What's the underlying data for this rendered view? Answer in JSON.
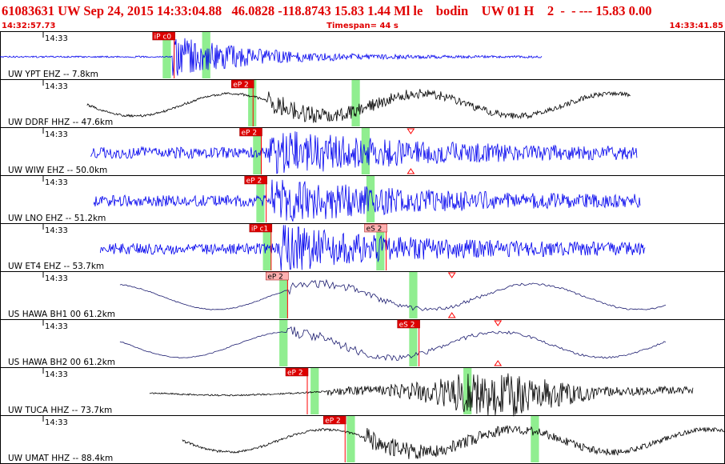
{
  "header": {
    "title": "61083631 UW Sep 24, 2015 14:33:04.88   46.0828 -118.8743 15.83 1.44 Ml le    bodin    UW 01 H    2  -  - --- 15.83 0.00",
    "start_time": "14:32:57.73",
    "timespan": "Timespan=  44 s",
    "end_time": "14:33:41.85"
  },
  "colors": {
    "header_text": "#e00000",
    "pick_label_bg": "#dd0000",
    "pick_label_bg_light": "#ffb0b0",
    "pick_line": "#ff0000",
    "green_window": "#90ee90",
    "trace_blue": "#0000ee",
    "trace_black": "#000000",
    "trace_navy": "#1a1a6e"
  },
  "chart_data": {
    "type": "line",
    "title": "61083631 UW Sep 24, 2015 14:33:04.88",
    "x_start": "14:32:57.73",
    "x_end": "14:33:41.85",
    "timespan_s": 44,
    "xlim": [
      0,
      44.12
    ],
    "grid": false,
    "traces": [
      {
        "label": "UW YPT EHZ -- 7.8km",
        "tick_label": "14:33",
        "color": "#0000ee",
        "style": "impulsive",
        "trace_start_s": 0.0,
        "trace_end_s": 33.0,
        "onset_s": 10.5,
        "coda_end_s": 19.0,
        "picks": [
          {
            "label": "iP c0",
            "time_s": 10.6,
            "style": "dark"
          }
        ],
        "windows_s": [
          [
            9.9,
            10.4
          ],
          [
            12.3,
            12.8
          ]
        ]
      },
      {
        "label": "UW DDRF HHZ -- 47.6km",
        "tick_label": "14:33",
        "color": "#000000",
        "style": "longperiod",
        "trace_start_s": 5.3,
        "trace_end_s": 38.4,
        "onset_s": 16.3,
        "coda_end_s": 32.0,
        "picks": [
          {
            "label": "eP 2",
            "time_s": 15.4,
            "style": "dark"
          }
        ],
        "windows_s": [
          [
            15.1,
            15.6
          ],
          [
            21.4,
            21.9
          ]
        ]
      },
      {
        "label": "UW WIW EHZ -- 50.0km",
        "tick_label": "14:33",
        "color": "#0000ee",
        "style": "noisy",
        "trace_start_s": 5.5,
        "trace_end_s": 38.8,
        "onset_s": 16.4,
        "coda_end_s": 30.5,
        "picks": [
          {
            "label": "eP 2",
            "time_s": 15.9,
            "style": "dark"
          }
        ],
        "windows_s": [
          [
            15.4,
            15.9
          ],
          [
            22.0,
            22.5
          ]
        ],
        "amplitude_marker_s": 25.0
      },
      {
        "label": "UW LNO EHZ -- 51.2km",
        "tick_label": "14:33",
        "color": "#0000ee",
        "style": "noisy",
        "trace_start_s": 5.7,
        "trace_end_s": 39.0,
        "onset_s": 16.5,
        "coda_end_s": 30.0,
        "picks": [
          {
            "label": "eP 2",
            "time_s": 16.2,
            "style": "dark"
          }
        ],
        "windows_s": [
          [
            15.6,
            16.1
          ],
          [
            22.3,
            22.8
          ]
        ]
      },
      {
        "label": "UW ET4 EHZ -- 53.7km",
        "tick_label": "14:33",
        "color": "#0000ee",
        "style": "noisy",
        "trace_start_s": 6.1,
        "trace_end_s": 39.3,
        "onset_s": 17.0,
        "coda_end_s": 29.0,
        "picks": [
          {
            "label": "iP c1",
            "time_s": 16.5,
            "style": "dark"
          },
          {
            "label": "eS 2",
            "time_s": 23.5,
            "style": "light"
          }
        ],
        "windows_s": [
          [
            16.0,
            16.5
          ],
          [
            22.9,
            23.4
          ]
        ]
      },
      {
        "label": "US HAWA BH1 00 61.2km",
        "tick_label": "14:33",
        "color": "#1a1a6e",
        "style": "smooth",
        "trace_start_s": 7.3,
        "trace_end_s": 40.6,
        "onset_s": 17.5,
        "coda_end_s": 30.5,
        "picks": [
          {
            "label": "eP 2",
            "time_s": 17.5,
            "style": "light"
          }
        ],
        "windows_s": [
          [
            17.0,
            17.5
          ],
          [
            24.9,
            25.4
          ]
        ],
        "amplitude_marker_s": 27.5
      },
      {
        "label": "US HAWA BH2 00 61.2km",
        "tick_label": "14:33",
        "color": "#1a1a6e",
        "style": "smooth",
        "trace_start_s": 7.3,
        "trace_end_s": 40.6,
        "onset_s": 17.5,
        "coda_end_s": 31.5,
        "picks": [
          {
            "label": "eS 2",
            "time_s": 25.5,
            "style": "dark"
          }
        ],
        "windows_s": [
          [
            17.0,
            17.5
          ],
          [
            24.9,
            25.4
          ]
        ],
        "amplitude_marker_s": 30.3
      },
      {
        "label": "UW TUCA HHZ -- 73.7km",
        "tick_label": "14:33",
        "color": "#000000",
        "style": "burst",
        "trace_start_s": 9.1,
        "trace_end_s": 42.2,
        "onset_s": 19.9,
        "coda_end_s": 36.0,
        "picks": [
          {
            "label": "eP 2",
            "time_s": 18.7,
            "style": "dark"
          }
        ],
        "windows_s": [
          [
            18.9,
            19.4
          ],
          [
            28.2,
            28.7
          ]
        ]
      },
      {
        "label": "UW UMAT HHZ -- 88.4km",
        "tick_label": "14:33",
        "color": "#000000",
        "style": "longperiod",
        "trace_start_s": 11.1,
        "trace_end_s": 44.12,
        "onset_s": 22.2,
        "coda_end_s": 38.0,
        "picks": [
          {
            "label": "eP 2",
            "time_s": 21.0,
            "style": "dark"
          }
        ],
        "windows_s": [
          [
            21.1,
            21.6
          ],
          [
            32.3,
            32.8
          ]
        ]
      }
    ]
  }
}
